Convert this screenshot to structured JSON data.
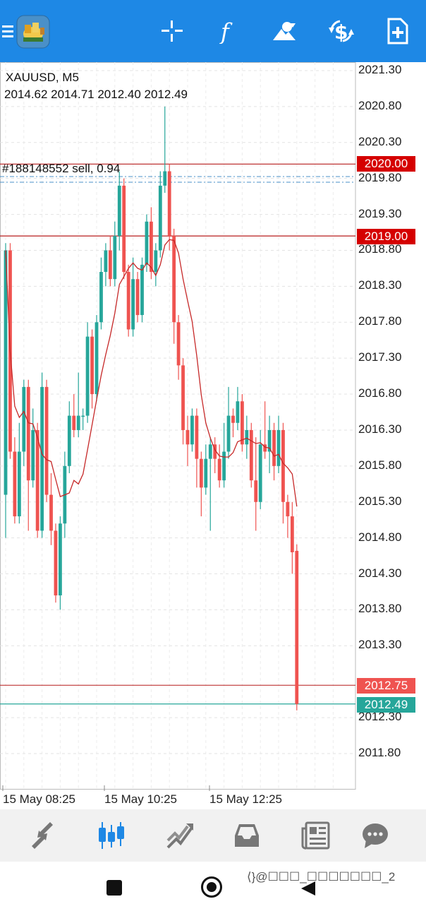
{
  "header": {
    "icons": [
      "menu-icon",
      "app-logo-icon",
      "crosshair-icon",
      "indicators-icon",
      "objects-icon",
      "trade-icon",
      "new-order-icon"
    ]
  },
  "chart": {
    "symbol_label": "XAUUSD, M5",
    "ohlc_label": "2014.62 2014.71 2012.40 2012.49",
    "order_label": "#188148552 sell, 0.94",
    "price_ticks": [
      "2021.30",
      "2020.80",
      "2020.30",
      "2019.80",
      "2019.30",
      "2018.80",
      "2018.30",
      "2017.80",
      "2017.30",
      "2016.80",
      "2016.30",
      "2015.80",
      "2015.30",
      "2014.80",
      "2014.30",
      "2013.80",
      "2013.30",
      "2012.30",
      "2011.80"
    ],
    "price_tags": {
      "level_2020": "2020.00",
      "level_2019": "2019.00",
      "level_2012_75": "2012.75",
      "bid": "2012.49"
    },
    "time_labels": [
      "15 May 08:25",
      "15 May 10:25",
      "15 May 12:25"
    ],
    "colors": {
      "bull": "#26a69a",
      "bear": "#ef5350",
      "level_line": "#b71c1c",
      "ma_line": "#c62828",
      "bid_line": "#26a69a",
      "tag_red": "#d50000",
      "tag_bear": "#ef5350",
      "tag_bid": "#26a69a",
      "accent": "#1e88e5"
    }
  },
  "chart_data": {
    "type": "candlestick",
    "symbol": "XAUUSD",
    "timeframe": "M5",
    "ylim": [
      2011.5,
      2021.5
    ],
    "grid": true,
    "candles": [
      [
        2015.4,
        2018.8,
        2018.9,
        2014.8
      ],
      [
        2018.8,
        2016.0,
        2018.9,
        2015.9
      ],
      [
        2016.0,
        2015.1,
        2016.2,
        2015.0
      ],
      [
        2015.1,
        2016.0,
        2016.4,
        2015.0
      ],
      [
        2016.0,
        2016.9,
        2017.0,
        2015.8
      ],
      [
        2016.9,
        2015.6,
        2017.0,
        2014.9
      ],
      [
        2015.6,
        2016.3,
        2016.6,
        2015.5
      ],
      [
        2016.3,
        2014.9,
        2016.4,
        2014.8
      ],
      [
        2014.9,
        2016.9,
        2017.1,
        2014.8
      ],
      [
        2016.9,
        2015.4,
        2017.0,
        2015.3
      ],
      [
        2015.4,
        2014.9,
        2015.7,
        2014.7
      ],
      [
        2014.9,
        2014.0,
        2015.0,
        2013.9
      ],
      [
        2014.0,
        2015.0,
        2015.1,
        2013.8
      ],
      [
        2015.0,
        2015.8,
        2016.0,
        2014.8
      ],
      [
        2015.8,
        2016.5,
        2016.7,
        2015.7
      ],
      [
        2016.5,
        2016.3,
        2016.8,
        2016.2
      ],
      [
        2016.3,
        2016.5,
        2017.1,
        2016.2
      ],
      [
        2016.5,
        2016.5,
        2016.6,
        2016.3
      ],
      [
        2016.5,
        2017.6,
        2017.8,
        2016.4
      ],
      [
        2017.6,
        2016.8,
        2017.7,
        2016.6
      ],
      [
        2016.8,
        2017.8,
        2017.9,
        2016.7
      ],
      [
        2017.8,
        2018.5,
        2018.7,
        2017.7
      ],
      [
        2018.5,
        2018.8,
        2018.9,
        2018.3
      ],
      [
        2018.8,
        2018.4,
        2019.0,
        2018.3
      ],
      [
        2018.4,
        2019.0,
        2019.2,
        2018.3
      ],
      [
        2019.0,
        2019.7,
        2019.9,
        2018.8
      ],
      [
        2019.7,
        2018.5,
        2019.8,
        2018.4
      ],
      [
        2018.5,
        2017.7,
        2018.6,
        2017.6
      ],
      [
        2017.7,
        2018.4,
        2018.7,
        2017.6
      ],
      [
        2018.4,
        2017.9,
        2018.5,
        2017.8
      ],
      [
        2017.9,
        2018.6,
        2018.7,
        2017.8
      ],
      [
        2018.6,
        2019.2,
        2019.3,
        2018.5
      ],
      [
        2019.2,
        2018.5,
        2019.4,
        2018.4
      ],
      [
        2018.5,
        2018.8,
        2018.9,
        2018.3
      ],
      [
        2018.8,
        2019.7,
        2019.9,
        2018.7
      ],
      [
        2019.7,
        2019.9,
        2020.8,
        2019.6
      ],
      [
        2019.9,
        2019.0,
        2020.0,
        2018.8
      ],
      [
        2019.0,
        2017.8,
        2019.1,
        2017.5
      ],
      [
        2017.8,
        2017.2,
        2017.9,
        2017.0
      ],
      [
        2017.2,
        2016.3,
        2017.3,
        2016.1
      ],
      [
        2016.3,
        2016.1,
        2016.5,
        2015.8
      ],
      [
        2016.1,
        2016.5,
        2016.6,
        2016.0
      ],
      [
        2016.5,
        2015.9,
        2016.6,
        2015.5
      ],
      [
        2015.9,
        2015.5,
        2016.0,
        2015.1
      ],
      [
        2015.5,
        2015.9,
        2016.1,
        2015.4
      ],
      [
        2015.9,
        2016.1,
        2016.2,
        2014.9
      ],
      [
        2016.1,
        2015.9,
        2016.2,
        2015.7
      ],
      [
        2015.9,
        2015.6,
        2016.1,
        2015.5
      ],
      [
        2015.6,
        2016.0,
        2016.4,
        2015.5
      ],
      [
        2016.0,
        2016.5,
        2016.9,
        2015.9
      ],
      [
        2016.5,
        2016.4,
        2016.6,
        2016.2
      ],
      [
        2016.4,
        2016.7,
        2016.9,
        2016.3
      ],
      [
        2016.7,
        2016.1,
        2016.8,
        2016.0
      ],
      [
        2016.1,
        2016.3,
        2016.5,
        2015.9
      ],
      [
        2016.3,
        2015.6,
        2016.4,
        2015.5
      ],
      [
        2015.6,
        2015.3,
        2016.2,
        2014.9
      ],
      [
        2015.3,
        2016.1,
        2016.3,
        2015.2
      ],
      [
        2016.1,
        2016.0,
        2016.7,
        2015.9
      ],
      [
        2016.0,
        2016.3,
        2016.5,
        2015.7
      ],
      [
        2016.3,
        2015.8,
        2016.4,
        2015.6
      ],
      [
        2015.8,
        2016.3,
        2016.5,
        2015.7
      ],
      [
        2016.3,
        2015.3,
        2016.4,
        2015.0
      ],
      [
        2015.3,
        2015.1,
        2015.4,
        2014.8
      ],
      [
        2015.1,
        2014.6,
        2015.3,
        2014.3
      ],
      [
        2014.62,
        2012.49,
        2014.71,
        2012.4
      ]
    ]
  },
  "bottom_nav": {
    "icons": [
      "quotes-icon",
      "chart-icon",
      "trade-icon",
      "history-icon",
      "news-icon",
      "messages-icon"
    ],
    "active": "chart-icon"
  },
  "system_nav": {
    "watermark": "⟨}@☐☐☐_☐☐☐☐☐☐☐_2"
  }
}
